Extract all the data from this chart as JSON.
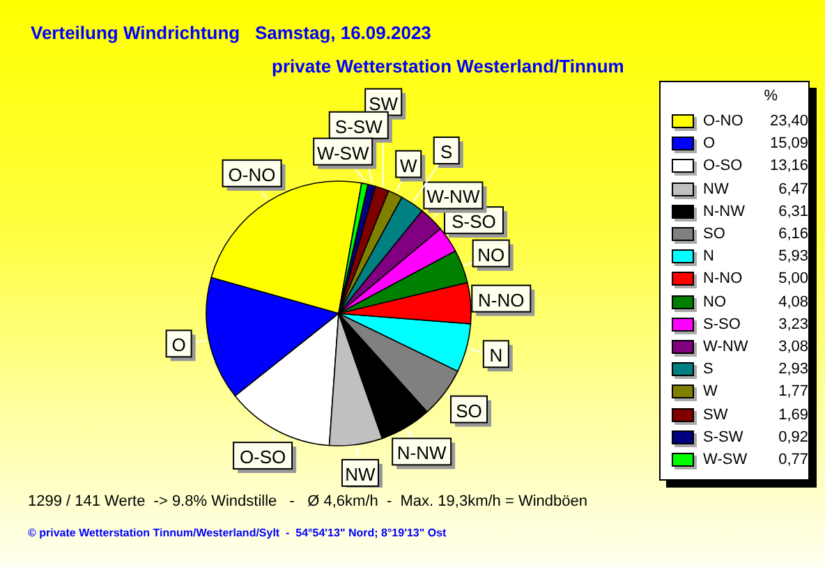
{
  "chart_data": {
    "type": "pie",
    "title": "Verteilung Windrichtung   Samstag, 16.09.2023",
    "subtitle": "private Wetterstation Westerland/Tinnum",
    "legend_title": "%",
    "legend": "right",
    "categories": [
      "O-NO",
      "O",
      "O-SO",
      "NW",
      "N-NW",
      "SO",
      "N",
      "N-NO",
      "NO",
      "S-SO",
      "W-NW",
      "S",
      "W",
      "SW",
      "S-SW",
      "W-SW"
    ],
    "values": [
      23.4,
      15.09,
      13.16,
      6.47,
      6.31,
      6.16,
      5.93,
      5.0,
      4.08,
      3.23,
      3.08,
      2.93,
      1.77,
      1.69,
      0.92,
      0.77
    ],
    "value_labels": [
      "23,40",
      "15,09",
      "13,16",
      "6,47",
      "6,31",
      "6,16",
      "5,93",
      "5,00",
      "4,08",
      "3,23",
      "3,08",
      "2,93",
      "1,77",
      "1,69",
      "0,92",
      "0,77"
    ],
    "colors": [
      "#ffff00",
      "#0000ff",
      "#ffffff",
      "#c0c0c0",
      "#000000",
      "#808080",
      "#00ffff",
      "#ff0000",
      "#008000",
      "#ff00ff",
      "#800080",
      "#008080",
      "#808000",
      "#800000",
      "#000080",
      "#00ff00"
    ],
    "annotations": [
      "1299 / 141 Werte  -> 9.8% Windstille   -   Ø 4,6km/h  -  Max. 19,3km/h = Windböen",
      "© private Wetterstation Tinnum/Westerland/Sylt  -  54°54'13\" Nord; 8°19'13\" Ost"
    ]
  }
}
